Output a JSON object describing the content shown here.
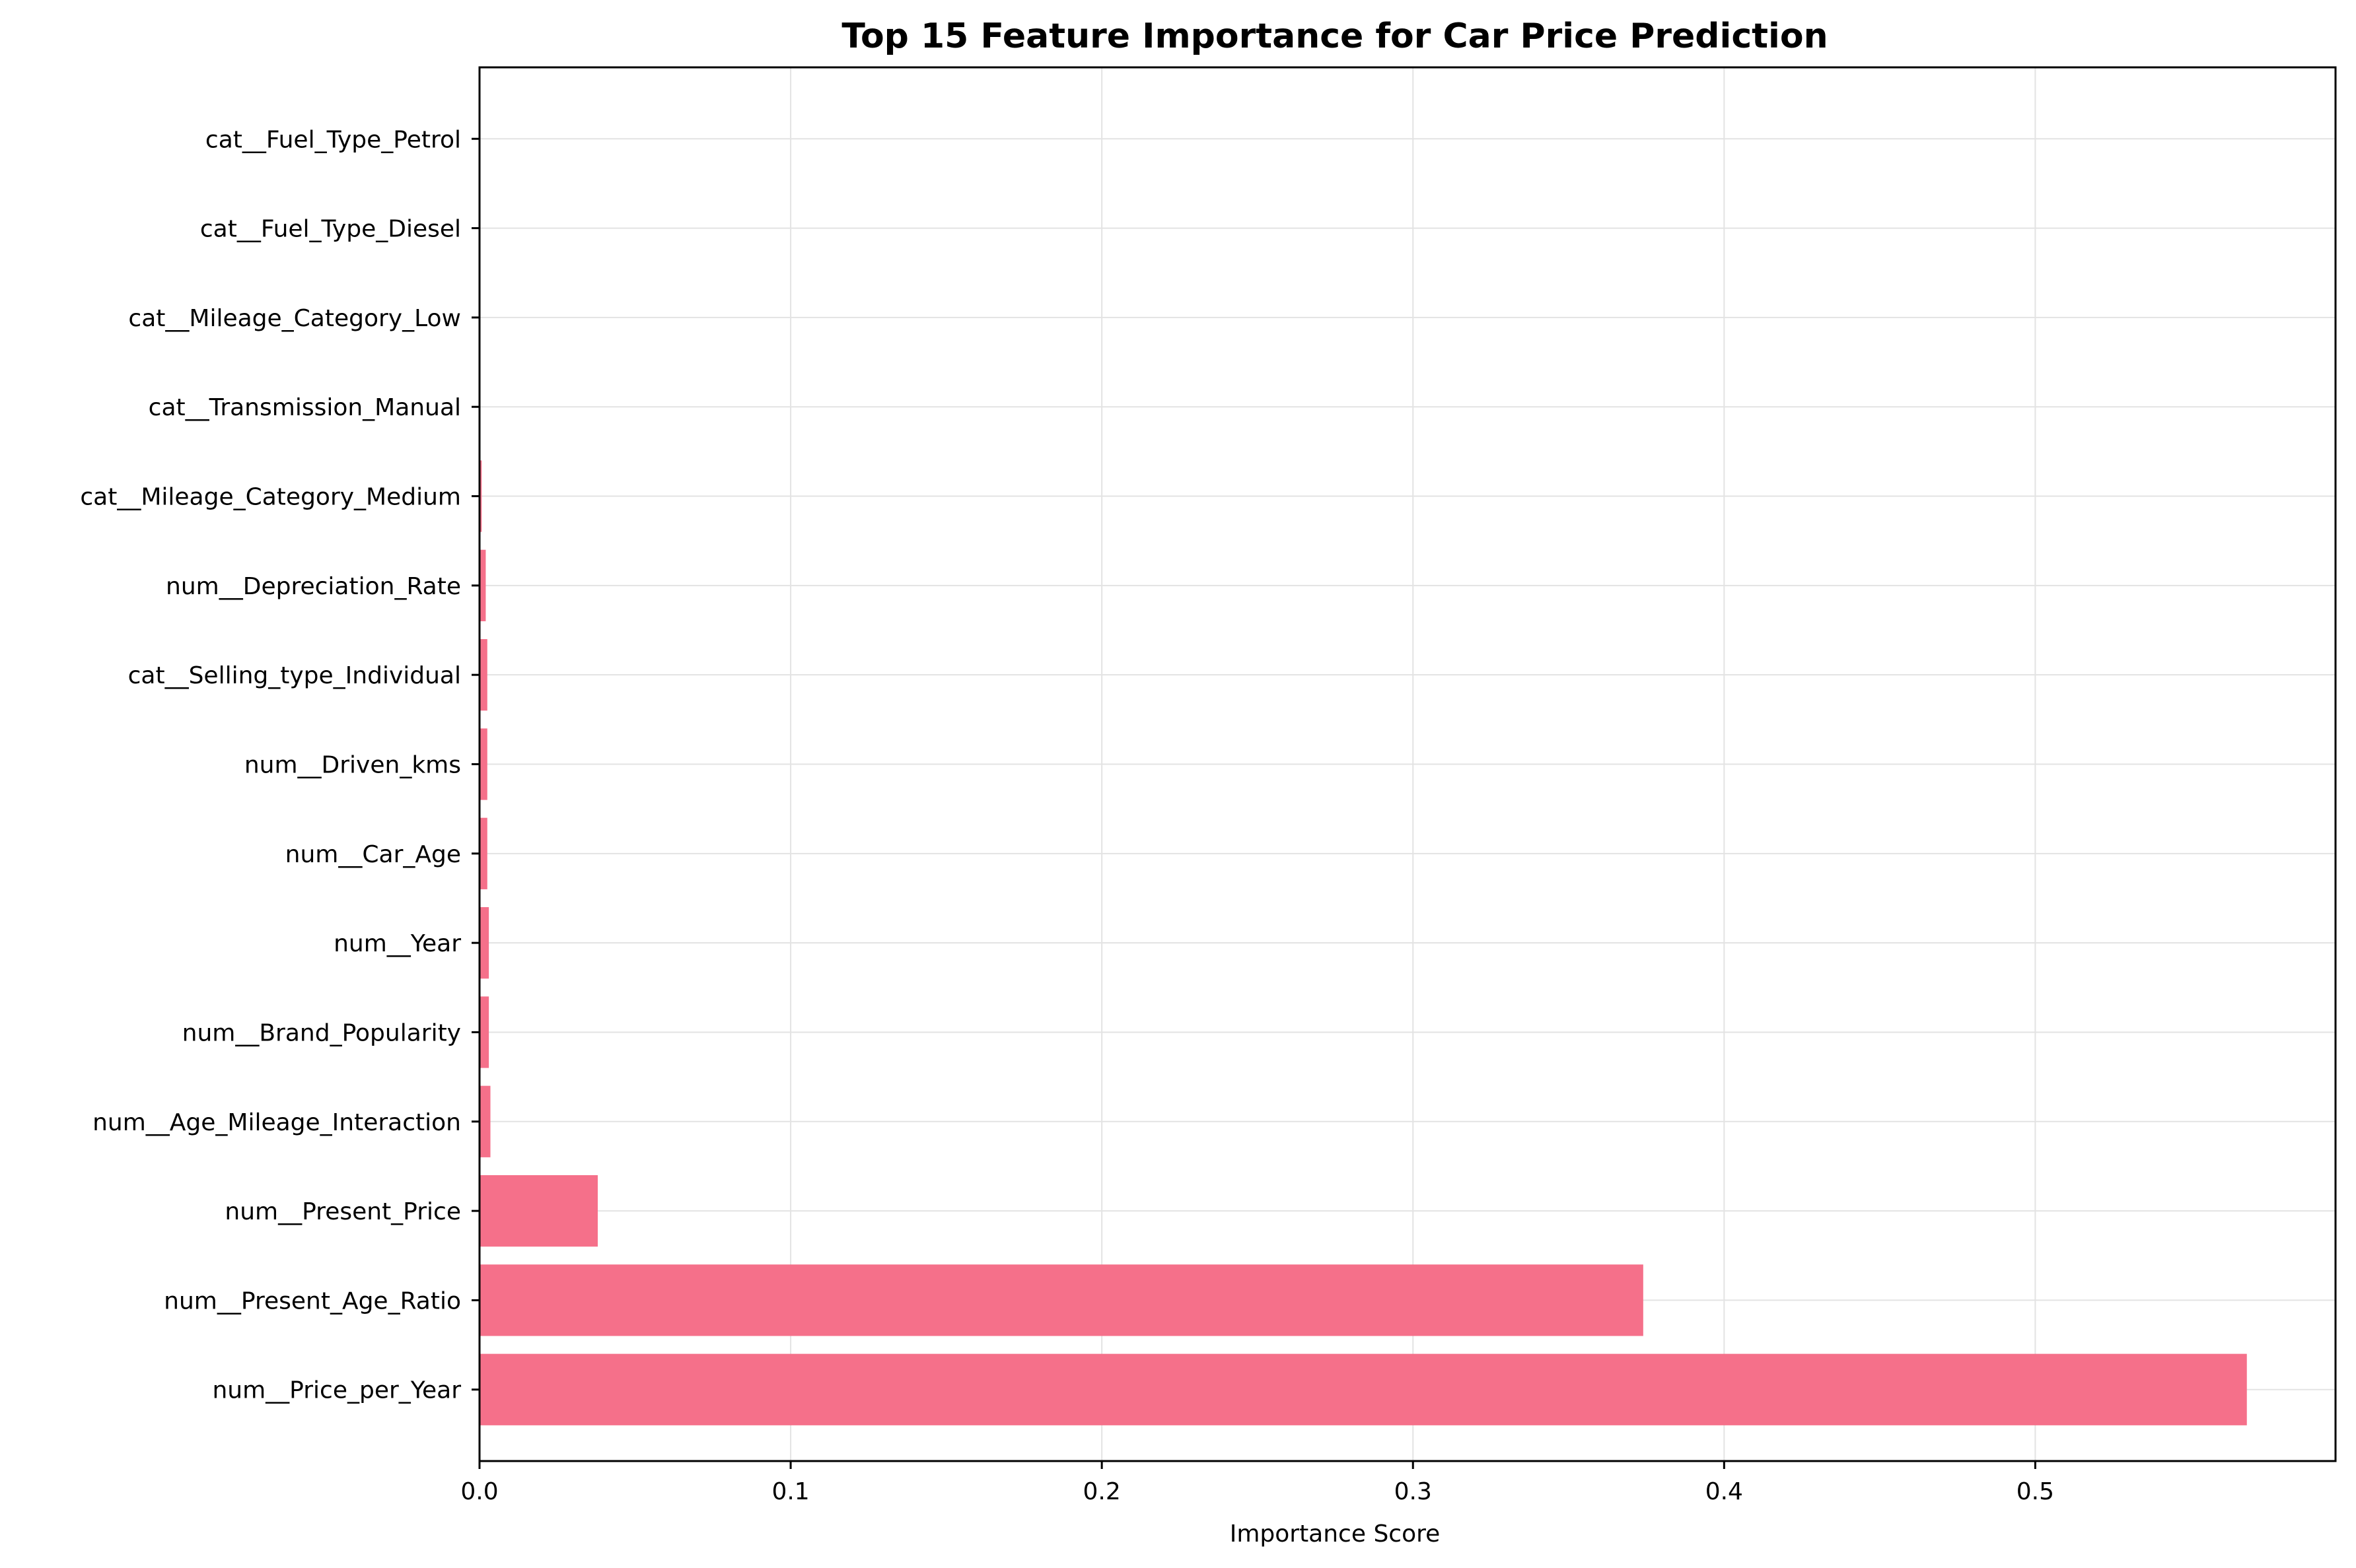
{
  "chart_data": {
    "type": "bar",
    "orientation": "horizontal",
    "title": "Top 15 Feature Importance for Car Price Prediction",
    "xlabel": "Importance Score",
    "ylabel": "",
    "categories": [
      "num__Price_per_Year",
      "num__Present_Age_Ratio",
      "num__Present_Price",
      "num__Age_Mileage_Interaction",
      "num__Brand_Popularity",
      "num__Year",
      "num__Car_Age",
      "num__Driven_kms",
      "cat__Selling_type_Individual",
      "num__Depreciation_Rate",
      "cat__Mileage_Category_Medium",
      "cat__Transmission_Manual",
      "cat__Mileage_Category_Low",
      "cat__Fuel_Type_Diesel",
      "cat__Fuel_Type_Petrol"
    ],
    "values": [
      0.568,
      0.374,
      0.038,
      0.0035,
      0.003,
      0.003,
      0.0025,
      0.0025,
      0.0025,
      0.002,
      0.0007,
      0.0001,
      0.0,
      0.0,
      0.0
    ],
    "xlim": [
      0,
      0.5965
    ],
    "xticks": [
      0.0,
      0.1,
      0.2,
      0.3,
      0.4,
      0.5
    ],
    "xtick_labels": [
      "0.0",
      "0.1",
      "0.2",
      "0.3",
      "0.4",
      "0.5"
    ],
    "grid": true,
    "legend": "none",
    "colors": {
      "bar": "#f5708a",
      "grid": "#e3e3e3",
      "axis": "#000000"
    }
  }
}
